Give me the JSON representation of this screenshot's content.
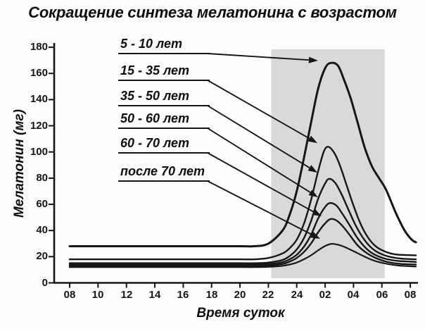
{
  "title": "Сокращение синтеза мелатонина с возрастом",
  "colors": {
    "curve": "#161616",
    "night_shade": "#d9d9d9",
    "background": "#fdfdfc",
    "text": "#111111"
  },
  "chart_data": {
    "type": "line",
    "title": "Сокращение синтеза мелатонина с возрастом",
    "xlabel": "Время суток",
    "ylabel": "Мелатонин (мг)",
    "x_tick_labels": [
      "08",
      "10",
      "12",
      "14",
      "16",
      "18",
      "20",
      "22",
      "24",
      "02",
      "04",
      "06",
      "08"
    ],
    "x_tick_hours": [
      8,
      10,
      12,
      14,
      16,
      18,
      20,
      22,
      24,
      26,
      28,
      30,
      32
    ],
    "y_ticks": [
      0,
      20,
      40,
      60,
      80,
      100,
      120,
      140,
      160,
      180
    ],
    "ylim": [
      0,
      180
    ],
    "xlim_hours": [
      8,
      32.4
    ],
    "grid": false,
    "legend_position": "upper-left-callouts",
    "night_shade": {
      "start_label": "22",
      "end_label": "06",
      "start_hour": 22.2,
      "end_hour": 30.2
    },
    "series": [
      {
        "name": "5 - 10  лет",
        "baseline_mg": 28,
        "peak_mg": 168,
        "peak_time": "02:20",
        "points": [
          [
            8,
            28
          ],
          [
            12,
            28
          ],
          [
            16,
            28
          ],
          [
            20,
            28
          ],
          [
            21,
            28
          ],
          [
            22,
            30
          ],
          [
            23,
            40
          ],
          [
            23.5,
            52
          ],
          [
            24,
            70
          ],
          [
            24.5,
            95
          ],
          [
            25,
            122
          ],
          [
            25.5,
            148
          ],
          [
            26,
            164
          ],
          [
            26.4,
            168
          ],
          [
            26.9,
            166
          ],
          [
            27.3,
            156
          ],
          [
            27.8,
            141
          ],
          [
            28.3,
            122
          ],
          [
            28.8,
            103
          ],
          [
            29.3,
            89
          ],
          [
            29.8,
            80
          ],
          [
            30.3,
            71
          ],
          [
            31,
            53
          ],
          [
            31.6,
            40
          ],
          [
            32.1,
            33
          ],
          [
            32.4,
            31
          ]
        ]
      },
      {
        "name": "15 - 35 лет",
        "baseline_mg": 18,
        "peak_mg": 104,
        "peak_time": "02:10",
        "points": [
          [
            8,
            18
          ],
          [
            12,
            18
          ],
          [
            16,
            18
          ],
          [
            20,
            18
          ],
          [
            21,
            18
          ],
          [
            22,
            19
          ],
          [
            23,
            22.5
          ],
          [
            23.5,
            26.5
          ],
          [
            24,
            33
          ],
          [
            24.5,
            45
          ],
          [
            25,
            63
          ],
          [
            25.5,
            85
          ],
          [
            25.9,
            100
          ],
          [
            26.2,
            104
          ],
          [
            26.6,
            100
          ],
          [
            27,
            91
          ],
          [
            27.5,
            75
          ],
          [
            28,
            59
          ],
          [
            28.5,
            45
          ],
          [
            29,
            35
          ],
          [
            29.5,
            28.5
          ],
          [
            30,
            25
          ],
          [
            30.6,
            22.5
          ],
          [
            31.2,
            21.5
          ],
          [
            32.4,
            21
          ]
        ]
      },
      {
        "name": "35 - 50 лет",
        "baseline_mg": 15,
        "peak_mg": 80,
        "peak_time": "02:15",
        "points": [
          [
            8,
            15
          ],
          [
            12,
            15
          ],
          [
            16,
            15
          ],
          [
            20,
            15
          ],
          [
            21,
            15
          ],
          [
            22,
            15.5
          ],
          [
            23,
            17.5
          ],
          [
            23.5,
            20.5
          ],
          [
            24,
            25.5
          ],
          [
            24.5,
            34
          ],
          [
            25,
            47
          ],
          [
            25.5,
            64
          ],
          [
            26,
            76
          ],
          [
            26.3,
            79.5
          ],
          [
            26.7,
            76.5
          ],
          [
            27.1,
            69
          ],
          [
            27.6,
            57
          ],
          [
            28.1,
            45
          ],
          [
            28.6,
            35.5
          ],
          [
            29.1,
            28.5
          ],
          [
            29.6,
            24
          ],
          [
            30.2,
            21
          ],
          [
            30.8,
            19.3
          ],
          [
            31.5,
            18.4
          ],
          [
            32.4,
            18
          ]
        ]
      },
      {
        "name": "50 - 60 лет",
        "baseline_mg": 14,
        "peak_mg": 61,
        "peak_time": "02:20",
        "points": [
          [
            8,
            14
          ],
          [
            12,
            14
          ],
          [
            16,
            14
          ],
          [
            20,
            14
          ],
          [
            21,
            14
          ],
          [
            22,
            14.3
          ],
          [
            23,
            15.8
          ],
          [
            23.5,
            18
          ],
          [
            24,
            21.5
          ],
          [
            24.5,
            27.5
          ],
          [
            25,
            36.5
          ],
          [
            25.5,
            49
          ],
          [
            26,
            58
          ],
          [
            26.35,
            61
          ],
          [
            26.8,
            59
          ],
          [
            27.2,
            53
          ],
          [
            27.7,
            44.5
          ],
          [
            28.2,
            35.5
          ],
          [
            28.7,
            28.5
          ],
          [
            29.2,
            23.5
          ],
          [
            29.8,
            20
          ],
          [
            30.4,
            18
          ],
          [
            31.1,
            16.8
          ],
          [
            32.4,
            16
          ]
        ]
      },
      {
        "name": "60 - 70  лет",
        "baseline_mg": 13,
        "peak_mg": 49,
        "peak_time": "02:25",
        "points": [
          [
            8,
            13
          ],
          [
            12,
            13
          ],
          [
            16,
            13
          ],
          [
            20,
            13
          ],
          [
            21,
            13
          ],
          [
            22,
            13.2
          ],
          [
            23,
            14.4
          ],
          [
            23.5,
            16.2
          ],
          [
            24,
            19
          ],
          [
            24.5,
            23.5
          ],
          [
            25,
            30
          ],
          [
            25.5,
            38.5
          ],
          [
            26,
            45.5
          ],
          [
            26.4,
            48.8
          ],
          [
            26.85,
            47.3
          ],
          [
            27.3,
            42.5
          ],
          [
            27.8,
            35.5
          ],
          [
            28.3,
            28.5
          ],
          [
            28.9,
            23
          ],
          [
            29.5,
            19.3
          ],
          [
            30.1,
            16.8
          ],
          [
            30.7,
            15.3
          ],
          [
            31.3,
            14.5
          ],
          [
            32.4,
            14
          ]
        ]
      },
      {
        "name": "после 70 лет",
        "baseline_mg": 12,
        "peak_mg": 30,
        "peak_time": "02:30",
        "points": [
          [
            8,
            12
          ],
          [
            12,
            12
          ],
          [
            16,
            12
          ],
          [
            20,
            12
          ],
          [
            21,
            12
          ],
          [
            22,
            12.2
          ],
          [
            23,
            13
          ],
          [
            23.5,
            14
          ],
          [
            24,
            15.5
          ],
          [
            24.5,
            18
          ],
          [
            25,
            21
          ],
          [
            25.5,
            24.8
          ],
          [
            26,
            28.2
          ],
          [
            26.45,
            29.8
          ],
          [
            26.95,
            29
          ],
          [
            27.45,
            27
          ],
          [
            28,
            24.2
          ],
          [
            28.6,
            21
          ],
          [
            29.2,
            18
          ],
          [
            29.8,
            15.8
          ],
          [
            30.5,
            14.2
          ],
          [
            31.2,
            13.2
          ],
          [
            32.4,
            12.5
          ]
        ]
      }
    ]
  }
}
